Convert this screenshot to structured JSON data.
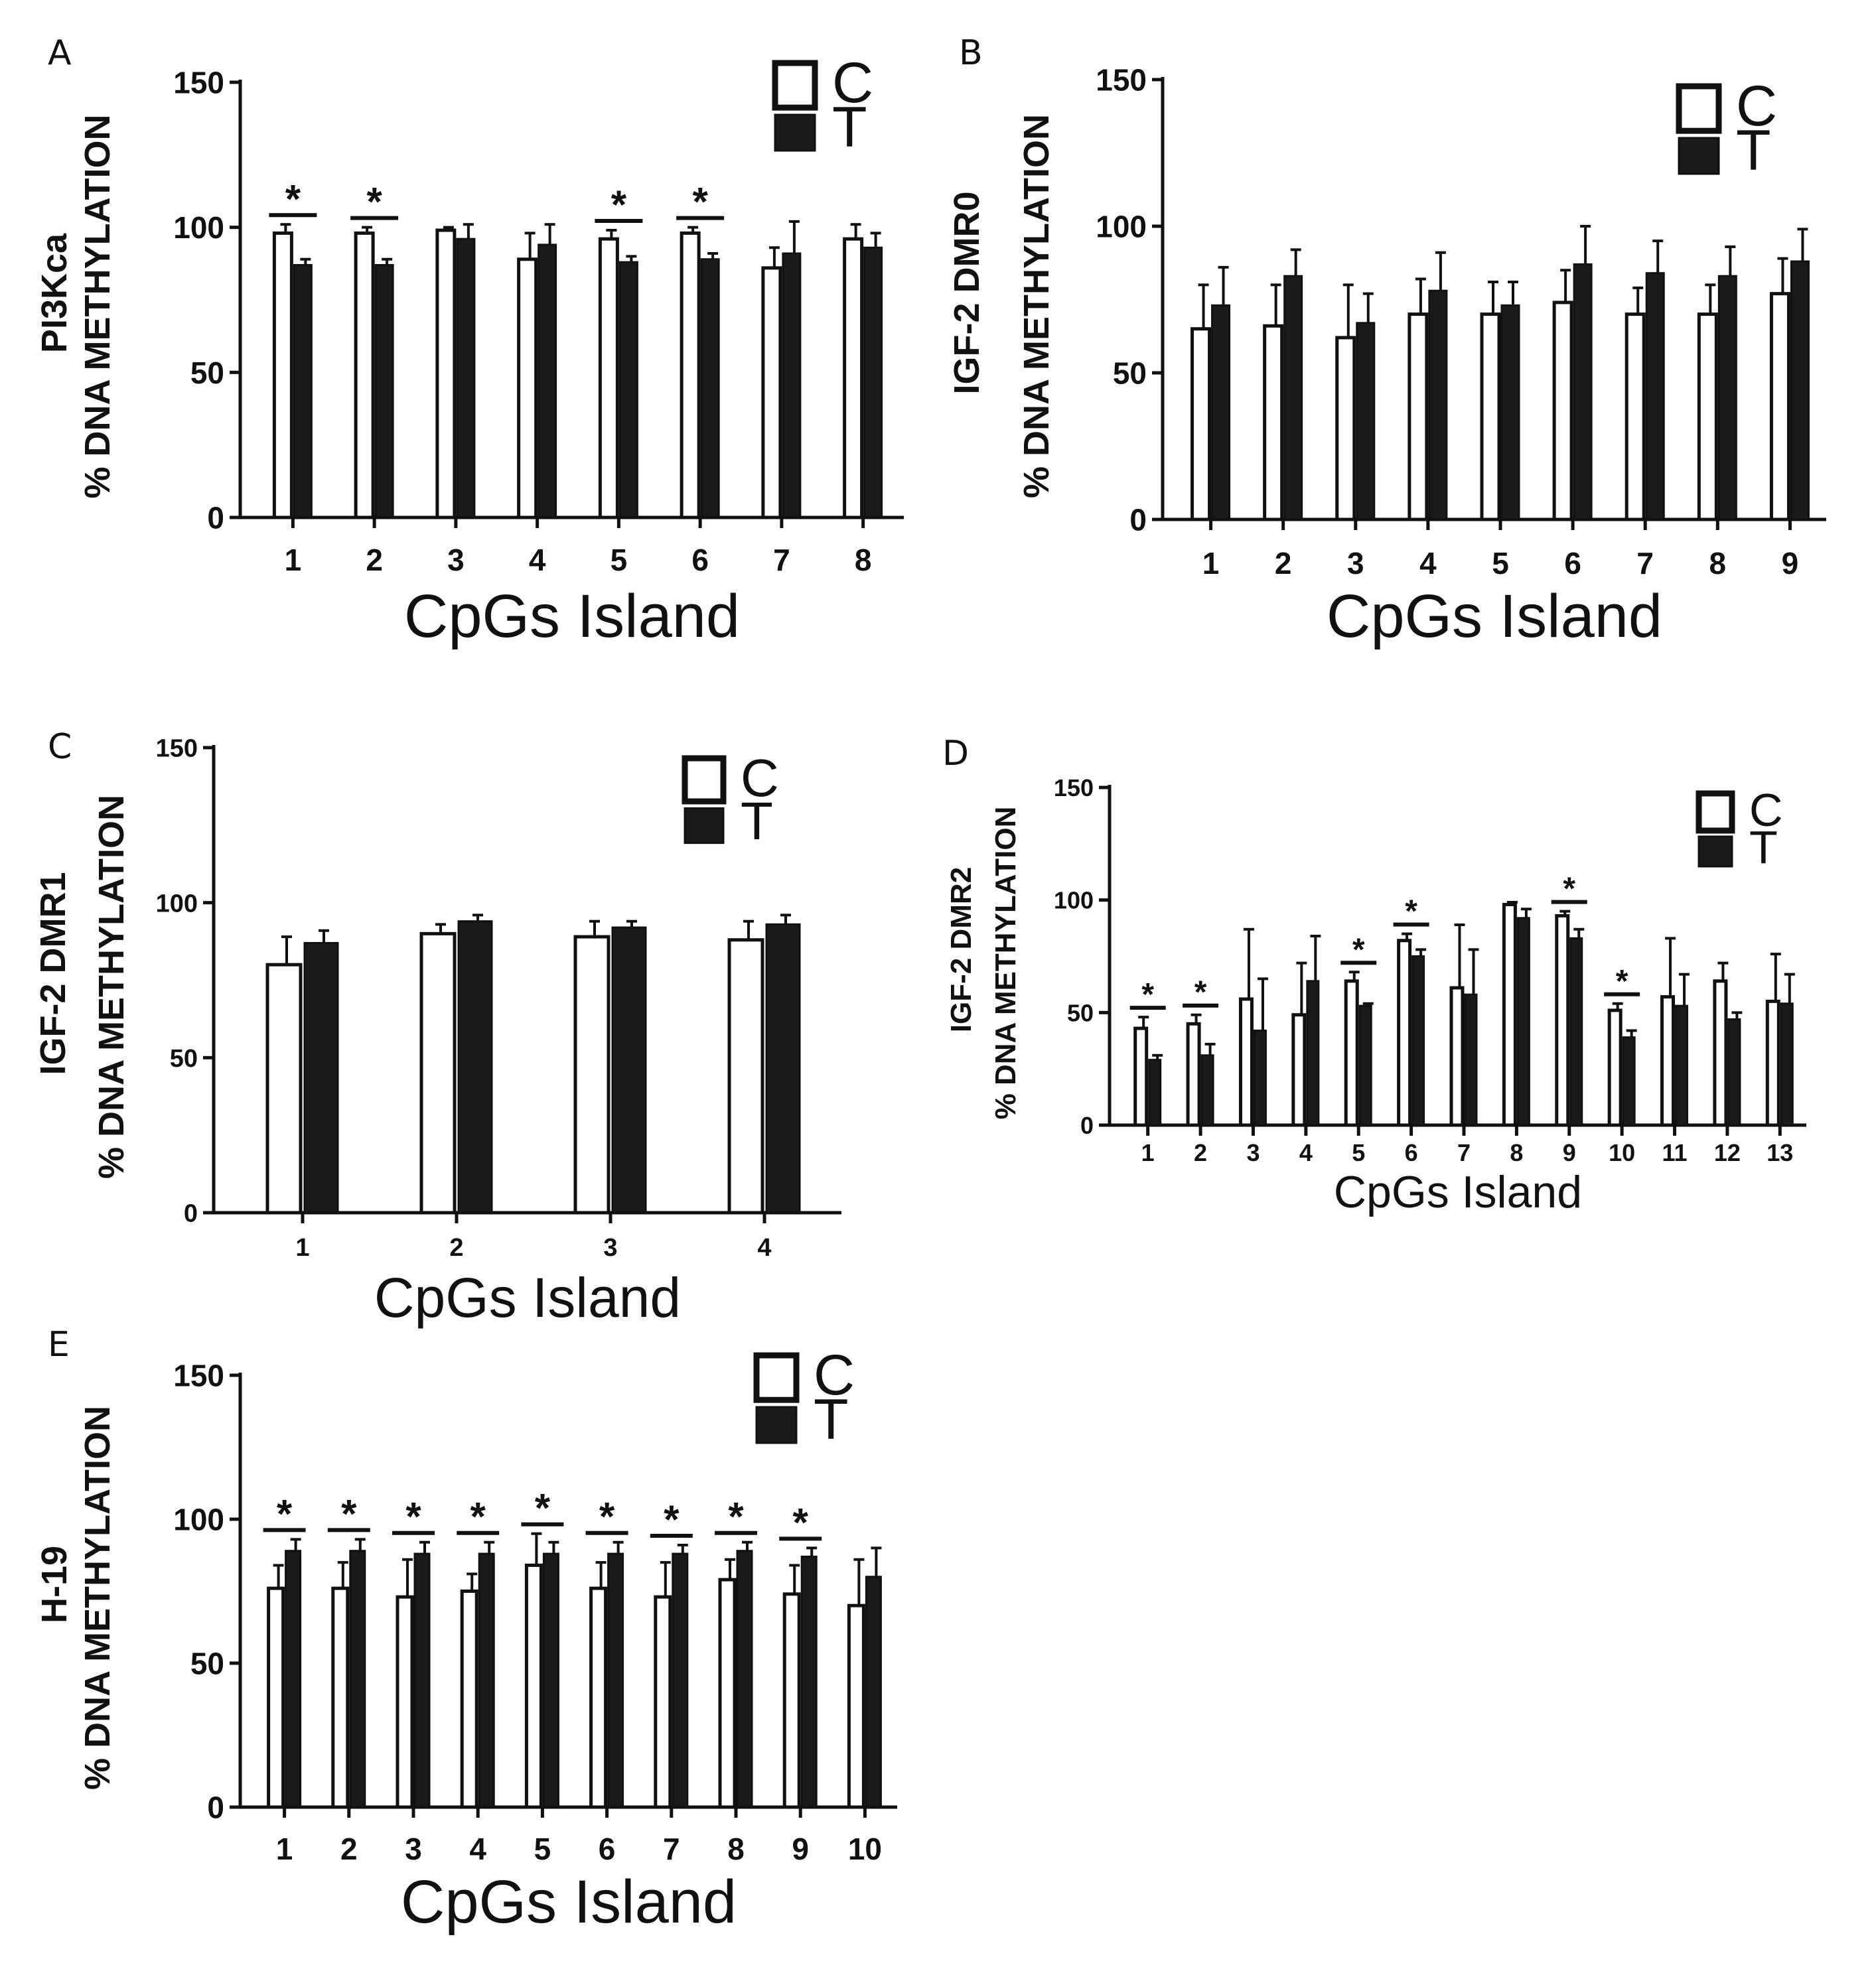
{
  "colors": {
    "control_fill": "#ffffff",
    "treated_fill": "#1a1a1a",
    "stroke": "#111111"
  },
  "chart_data": [
    {
      "type": "bar",
      "panel": "A",
      "ylabel_gene": "PI3Kca",
      "ylabel_metric": "% DNA METHYLATION",
      "xlabel": "CpGs Island",
      "categories": [
        "1",
        "2",
        "3",
        "4",
        "5",
        "6",
        "7",
        "8"
      ],
      "yticks": [
        "0",
        "50",
        "100",
        "150"
      ],
      "ylim": [
        0,
        150
      ],
      "legend": [
        "C",
        "T"
      ],
      "series": [
        {
          "name": "C",
          "values": [
            98,
            98,
            99,
            89,
            96,
            98,
            86,
            96
          ],
          "errors": [
            3,
            2,
            1,
            9,
            3,
            2,
            7,
            5
          ]
        },
        {
          "name": "T",
          "values": [
            87,
            87,
            96,
            94,
            88,
            89,
            91,
            93
          ],
          "errors": [
            2,
            2,
            5,
            7,
            2,
            2,
            11,
            5
          ]
        }
      ],
      "significance": [
        {
          "category": "1",
          "label": "*"
        },
        {
          "category": "2",
          "label": "*"
        },
        {
          "category": "5",
          "label": "*"
        },
        {
          "category": "6",
          "label": "*"
        }
      ]
    },
    {
      "type": "bar",
      "panel": "B",
      "ylabel_gene": "IGF-2 DMR0",
      "ylabel_metric": "% DNA METHYLATION",
      "xlabel": "CpGs Island",
      "categories": [
        "1",
        "2",
        "3",
        "4",
        "5",
        "6",
        "7",
        "8",
        "9"
      ],
      "yticks": [
        "0",
        "50",
        "100",
        "150"
      ],
      "ylim": [
        0,
        150
      ],
      "legend": [
        "C",
        "T"
      ],
      "series": [
        {
          "name": "C",
          "values": [
            65,
            66,
            62,
            70,
            70,
            74,
            70,
            70,
            77
          ],
          "errors": [
            15,
            14,
            18,
            12,
            11,
            11,
            9,
            10,
            12
          ]
        },
        {
          "name": "T",
          "values": [
            73,
            83,
            67,
            78,
            73,
            87,
            84,
            83,
            88
          ],
          "errors": [
            13,
            9,
            10,
            13,
            8,
            13,
            11,
            10,
            11
          ]
        }
      ],
      "significance": []
    },
    {
      "type": "bar",
      "panel": "C",
      "ylabel_gene": "IGF-2 DMR1",
      "ylabel_metric": "% DNA METHYLATION",
      "xlabel": "CpGs Island",
      "categories": [
        "1",
        "2",
        "3",
        "4"
      ],
      "yticks": [
        "0",
        "50",
        "100",
        "150"
      ],
      "ylim": [
        0,
        150
      ],
      "legend": [
        "C",
        "T"
      ],
      "series": [
        {
          "name": "C",
          "values": [
            80,
            90,
            89,
            88
          ],
          "errors": [
            9,
            3,
            5,
            6
          ]
        },
        {
          "name": "T",
          "values": [
            87,
            94,
            92,
            93
          ],
          "errors": [
            4,
            2,
            2,
            3
          ]
        }
      ],
      "significance": []
    },
    {
      "type": "bar",
      "panel": "D",
      "ylabel_gene": "IGF-2 DMR2",
      "ylabel_metric": "% DNA METHYLATION",
      "xlabel": "CpGs Island",
      "categories": [
        "1",
        "2",
        "3",
        "4",
        "5",
        "6",
        "7",
        "8",
        "9",
        "10",
        "11",
        "12",
        "13"
      ],
      "yticks": [
        "0",
        "50",
        "100",
        "150"
      ],
      "ylim": [
        0,
        150
      ],
      "legend": [
        "C",
        "T"
      ],
      "series": [
        {
          "name": "C",
          "values": [
            43,
            45,
            56,
            49,
            64,
            82,
            61,
            98,
            93,
            51,
            57,
            64,
            55
          ],
          "errors": [
            5,
            4,
            31,
            23,
            4,
            3,
            28,
            1,
            2,
            3,
            26,
            8,
            21
          ]
        },
        {
          "name": "T",
          "values": [
            29,
            31,
            42,
            64,
            53,
            75,
            58,
            92,
            83,
            39,
            53,
            47,
            54
          ],
          "errors": [
            2,
            5,
            23,
            20,
            1,
            3,
            20,
            4,
            4,
            3,
            14,
            3,
            13
          ]
        }
      ],
      "significance": [
        {
          "category": "1",
          "label": "*"
        },
        {
          "category": "2",
          "label": "*"
        },
        {
          "category": "5",
          "label": "*"
        },
        {
          "category": "6",
          "label": "*"
        },
        {
          "category": "9",
          "label": "*"
        },
        {
          "category": "10",
          "label": "*"
        }
      ]
    },
    {
      "type": "bar",
      "panel": "E",
      "ylabel_gene": "H-19",
      "ylabel_metric": "% DNA METHYLATION",
      "xlabel": "CpGs Island",
      "categories": [
        "1",
        "2",
        "3",
        "4",
        "5",
        "6",
        "7",
        "8",
        "9",
        "10"
      ],
      "yticks": [
        "0",
        "50",
        "100",
        "150"
      ],
      "ylim": [
        0,
        150
      ],
      "legend": [
        "C",
        "T"
      ],
      "series": [
        {
          "name": "C",
          "values": [
            76,
            76,
            73,
            75,
            84,
            76,
            73,
            79,
            74,
            70
          ],
          "errors": [
            8,
            9,
            13,
            6,
            11,
            9,
            12,
            7,
            10,
            16
          ]
        },
        {
          "name": "T",
          "values": [
            89,
            89,
            88,
            88,
            88,
            88,
            88,
            89,
            87,
            80
          ],
          "errors": [
            4,
            4,
            4,
            4,
            4,
            4,
            3,
            3,
            3,
            10
          ]
        }
      ],
      "significance": [
        {
          "category": "1",
          "label": "*"
        },
        {
          "category": "2",
          "label": "*"
        },
        {
          "category": "3",
          "label": "*"
        },
        {
          "category": "4",
          "label": "*"
        },
        {
          "category": "5",
          "label": "*"
        },
        {
          "category": "6",
          "label": "*"
        },
        {
          "category": "7",
          "label": "*"
        },
        {
          "category": "8",
          "label": "*"
        },
        {
          "category": "9",
          "label": "*"
        }
      ]
    }
  ]
}
